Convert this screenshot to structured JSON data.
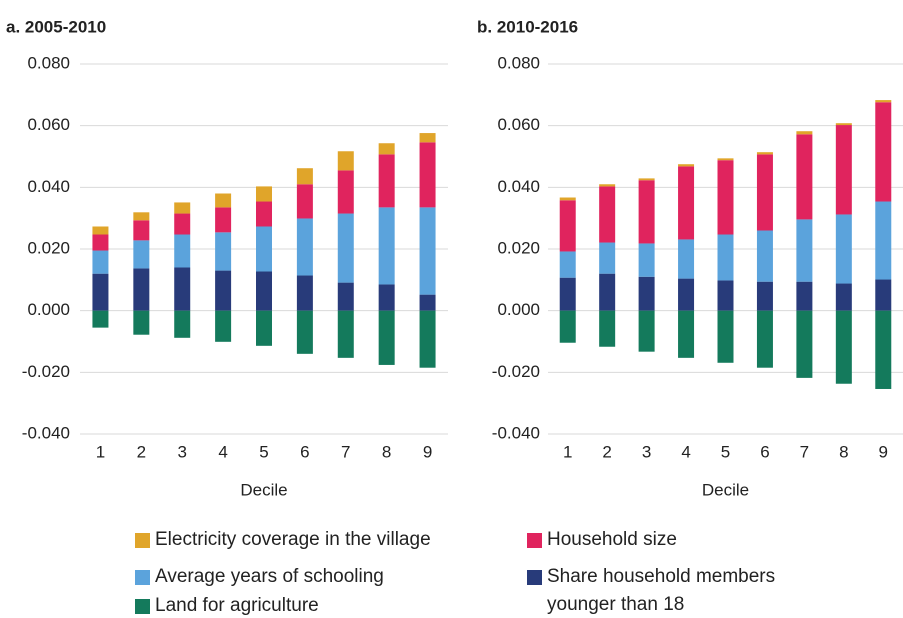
{
  "chart_data": [
    {
      "type": "bar",
      "stacked": true,
      "title": "a. 2005-2010",
      "x_label": "Decile",
      "categories": [
        "1",
        "2",
        "3",
        "4",
        "5",
        "6",
        "7",
        "8",
        "9"
      ],
      "ylim": [
        -0.04,
        0.08
      ],
      "yticks": [
        {
          "value": -0.04,
          "label": "-0.040"
        },
        {
          "value": -0.02,
          "label": "-0.020"
        },
        {
          "value": 0,
          "label": "0.000"
        },
        {
          "value": 0.02,
          "label": "0.020"
        },
        {
          "value": 0.04,
          "label": "0.040"
        },
        {
          "value": 0.06,
          "label": "0.060"
        },
        {
          "value": 0.08,
          "label": "0.080"
        }
      ],
      "grid": true,
      "series": [
        {
          "name": "Share household members younger than 18",
          "color": "#283b7a",
          "values": [
            0.012,
            0.0137,
            0.014,
            0.013,
            0.0127,
            0.0114,
            0.0091,
            0.0085,
            0.0052
          ]
        },
        {
          "name": "Average years of schooling",
          "color": "#5ba3dc",
          "values": [
            0.0075,
            0.0091,
            0.0107,
            0.0124,
            0.0146,
            0.0185,
            0.0224,
            0.025,
            0.0283
          ]
        },
        {
          "name": "Household size",
          "color": "#e0245e",
          "values": [
            0.0052,
            0.0065,
            0.0068,
            0.0081,
            0.0081,
            0.0111,
            0.014,
            0.0172,
            0.0211
          ]
        },
        {
          "name": "Electricity coverage in the village",
          "color": "#e0a52a",
          "values": [
            0.0026,
            0.0026,
            0.0036,
            0.0045,
            0.0049,
            0.0052,
            0.0062,
            0.0036,
            0.003
          ]
        },
        {
          "name": "Land for agriculture",
          "color": "#147a5c",
          "values": [
            -0.0055,
            -0.0078,
            -0.0088,
            -0.0101,
            -0.0114,
            -0.014,
            -0.0153,
            -0.0176,
            -0.0185
          ]
        }
      ]
    },
    {
      "type": "bar",
      "stacked": true,
      "title": "b. 2010-2016",
      "x_label": "Decile",
      "categories": [
        "1",
        "2",
        "3",
        "4",
        "5",
        "6",
        "7",
        "8",
        "9"
      ],
      "ylim": [
        -0.04,
        0.08
      ],
      "yticks": [
        {
          "value": -0.04,
          "label": "-0.040"
        },
        {
          "value": -0.02,
          "label": "-0.020"
        },
        {
          "value": 0,
          "label": "0.000"
        },
        {
          "value": 0.02,
          "label": "0.020"
        },
        {
          "value": 0.04,
          "label": "0.040"
        },
        {
          "value": 0.06,
          "label": "0.060"
        },
        {
          "value": 0.08,
          "label": "0.080"
        }
      ],
      "grid": true,
      "series": [
        {
          "color": "#283b7a",
          "values": [
            0.0107,
            0.012,
            0.011,
            0.0104,
            0.0098,
            0.0094,
            0.0094,
            0.0088,
            0.0101
          ]
        },
        {
          "color": "#5ba3dc",
          "values": [
            0.0085,
            0.0101,
            0.0108,
            0.0127,
            0.0149,
            0.0166,
            0.0202,
            0.0224,
            0.0253
          ]
        },
        {
          "color": "#e0245e",
          "values": [
            0.0166,
            0.0182,
            0.0205,
            0.0237,
            0.0241,
            0.0247,
            0.0276,
            0.029,
            0.0322
          ]
        },
        {
          "color": "#e0a52a",
          "values": [
            0.0009,
            0.0007,
            0.0006,
            0.0007,
            0.0006,
            0.0007,
            0.001,
            0.0006,
            0.0007
          ]
        },
        {
          "color": "#147a5c",
          "values": [
            -0.0104,
            -0.0117,
            -0.0133,
            -0.0153,
            -0.0169,
            -0.0185,
            -0.0218,
            -0.0237,
            -0.0254
          ]
        }
      ]
    }
  ]
}
